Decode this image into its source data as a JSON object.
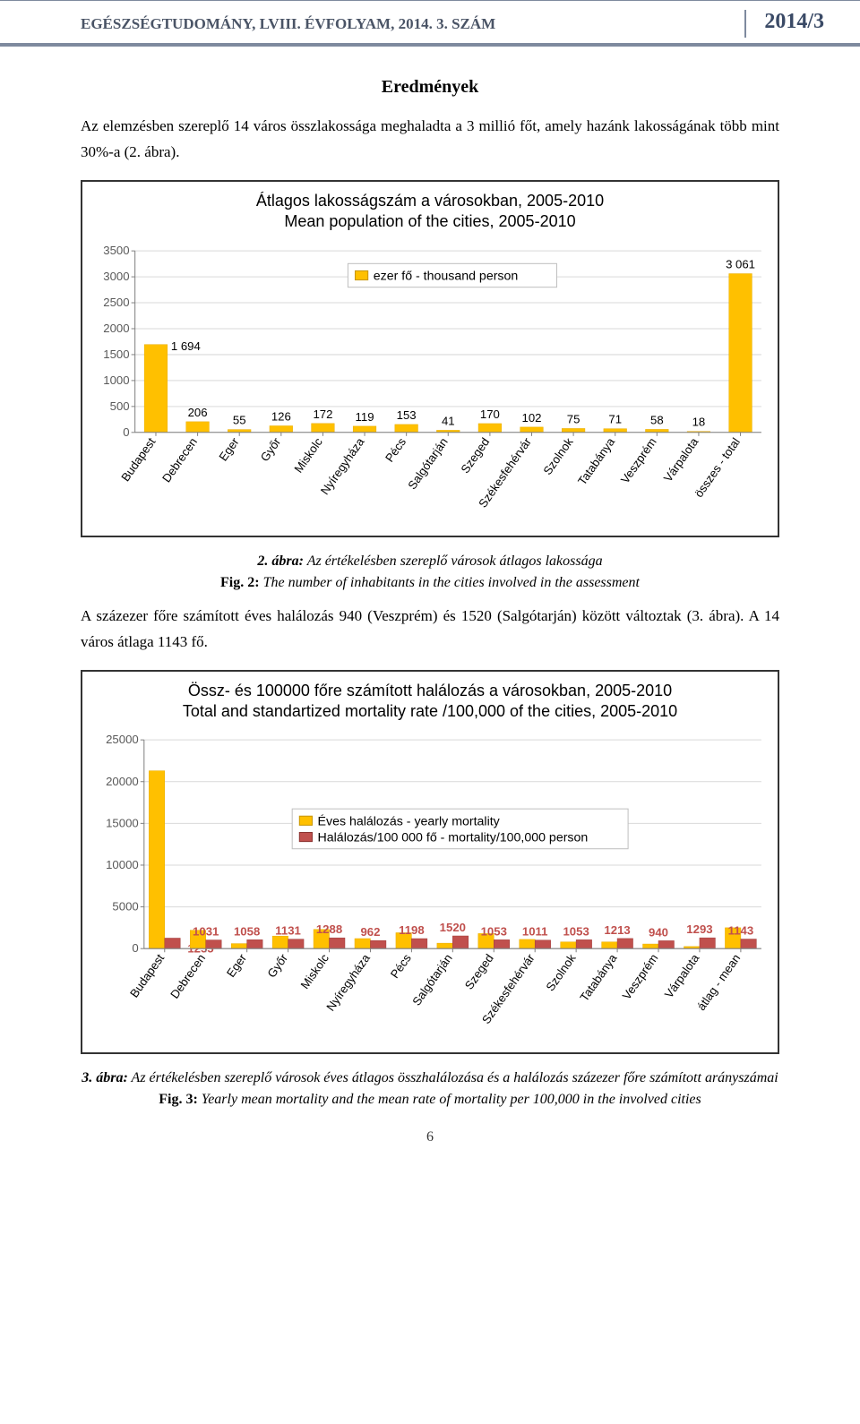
{
  "header": {
    "left": "EGÉSZSÉGTUDOMÁNY, LVIII. ÉVFOLYAM, 2014. 3. SZÁM",
    "right": "2014/3"
  },
  "section_title": "Eredmények",
  "para1": "Az elemzésben szereplő 14 város összlakossága meghaladta a 3 millió főt, amely hazánk lakosságának több mint 30%-a (2. ábra).",
  "fig2": {
    "caption_hu_lead": "2. ábra:",
    "caption_hu_rest": " Az értékelésben szereplő városok átlagos lakossága",
    "caption_en_lead": "Fig. 2:",
    "caption_en_rest": " The number of inhabitants in the cities involved in the assessment"
  },
  "para2": "A százezer főre számított éves halálozás 940 (Veszprém) és 1520 (Salgótarján) között változtak (3. ábra). A 14 város átlaga 1143 fő.",
  "fig3": {
    "caption_hu_lead": "3. ábra:",
    "caption_hu_rest": " Az értékelésben szereplő városok éves átlagos összhalálozása és a halálozás százezer főre számított arányszámai",
    "caption_en_lead": "Fig. 3:",
    "caption_en_rest": " Yearly mean mortality and the mean rate of mortality per 100,000 in the involved cities"
  },
  "page_number": "6",
  "chart1": {
    "type": "bar",
    "title_l1": "Átlagos lakosságszám a városokban, 2005-2010",
    "title_l2": "Mean population of the cities, 2005-2010",
    "legend": "ezer fő - thousand person",
    "ylim": [
      0,
      3500
    ],
    "ytick_step": 500,
    "bar_color": "#ffc000",
    "bar_width": 0.55,
    "grid_color": "#d9d9d9",
    "axis_color": "#808080",
    "label_fontsize": 13,
    "categories": [
      "Budapest",
      "Debrecen",
      "Eger",
      "Győr",
      "Miskolc",
      "Nyíregyháza",
      "Pécs",
      "Salgótarján",
      "Szeged",
      "Székesfehérvár",
      "Szolnok",
      "Tatabánya",
      "Veszprém",
      "Várpalota",
      "összes - total"
    ],
    "values": [
      1694,
      206,
      55,
      126,
      172,
      119,
      153,
      41,
      170,
      102,
      75,
      71,
      58,
      18,
      3061
    ],
    "labels": [
      "1 694",
      "206",
      "55",
      "126",
      "172",
      "119",
      "153",
      "41",
      "170",
      "102",
      "75",
      "71",
      "58",
      "18",
      "3 061"
    ]
  },
  "chart2": {
    "type": "grouped-bar",
    "title_l1": "Össz- és 100000 főre számított halálozás a városokban, 2005-2010",
    "title_l2": "Total and standartized mortality rate /100,000 of the cities, 2005-2010",
    "legend1": "Éves halálozás - yearly mortality",
    "legend2": "Halálozás/100 000 fő - mortality/100,000 person",
    "ylim": [
      0,
      25000
    ],
    "ytick_step": 5000,
    "bar1_color": "#ffc000",
    "bar2_color": "#c0504d",
    "bar_width": 0.38,
    "grid_color": "#d9d9d9",
    "axis_color": "#808080",
    "label_fontsize": 13,
    "categories": [
      "Budapest",
      "Debrecen",
      "Eger",
      "Győr",
      "Miskolc",
      "Nyíregyháza",
      "Pécs",
      "Salgótarján",
      "Szeged",
      "Székesfehérvár",
      "Szolnok",
      "Tatabánya",
      "Veszprém",
      "Várpalota",
      "átlag - mean"
    ],
    "series1": [
      21300,
      2200,
      600,
      1500,
      2300,
      1200,
      1900,
      650,
      1800,
      1100,
      800,
      800,
      550,
      250,
      2500
    ],
    "series2": [
      1255,
      1031,
      1058,
      1131,
      1288,
      962,
      1198,
      1520,
      1053,
      1011,
      1053,
      1213,
      940,
      1293,
      1143
    ],
    "labels2": [
      "1255",
      "1031",
      "1058",
      "1131",
      "1288",
      "962",
      "1198",
      "1520",
      "1053",
      "1011",
      "1053",
      "1213",
      "940",
      "1293",
      "1143"
    ]
  }
}
